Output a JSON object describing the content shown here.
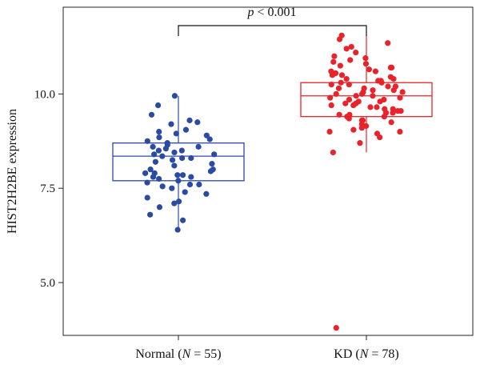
{
  "chart_data": {
    "type": "boxplot",
    "ylabel": "HIST2H2BE expression",
    "ylim": [
      3.6,
      12.3
    ],
    "yticks": [
      "5.0",
      "7.5",
      "10.0"
    ],
    "annotation": {
      "italic": "p",
      "rest": " < 0.001"
    },
    "colors": {
      "Normal": "#2b4ba3",
      "KD": "#e8232a"
    },
    "categories": [
      {
        "name": "Normal",
        "label_pre": "Normal (",
        "label_italic": "N",
        "label_post": " = 55)"
      },
      {
        "name": "KD",
        "label_pre": "KD (",
        "label_italic": "N",
        "label_post": " = 78)"
      }
    ],
    "boxes": [
      {
        "name": "Normal",
        "q1": 7.7,
        "median": 8.35,
        "q3": 8.7,
        "whisker_low": 6.4,
        "whisker_high": 9.95,
        "outliers": []
      },
      {
        "name": "KD",
        "q1": 9.4,
        "median": 9.95,
        "q3": 10.3,
        "whisker_low": 8.45,
        "whisker_high": 11.55,
        "outliers": [
          3.8
        ]
      }
    ],
    "points": {
      "Normal": [
        6.4,
        6.65,
        6.8,
        7.0,
        7.1,
        7.15,
        7.25,
        7.35,
        7.4,
        7.5,
        7.55,
        7.6,
        7.6,
        7.65,
        7.7,
        7.75,
        7.8,
        7.8,
        7.85,
        7.85,
        7.9,
        7.9,
        7.95,
        8.0,
        8.0,
        8.1,
        8.15,
        8.2,
        8.25,
        8.3,
        8.3,
        8.35,
        8.4,
        8.4,
        8.45,
        8.5,
        8.5,
        8.55,
        8.6,
        8.6,
        8.65,
        8.7,
        8.75,
        8.8,
        8.85,
        8.9,
        8.95,
        9.0,
        9.05,
        9.2,
        9.25,
        9.3,
        9.45,
        9.7,
        9.95
      ],
      "KD": [
        3.8,
        8.45,
        8.7,
        8.85,
        8.95,
        9.0,
        9.05,
        9.1,
        9.15,
        9.2,
        9.25,
        9.3,
        9.3,
        9.35,
        9.4,
        9.4,
        9.45,
        9.45,
        9.5,
        9.5,
        9.55,
        9.55,
        9.6,
        9.6,
        9.65,
        9.65,
        9.7,
        9.7,
        9.75,
        9.75,
        9.8,
        9.8,
        9.85,
        9.85,
        9.9,
        9.9,
        9.95,
        9.95,
        10.0,
        10.0,
        10.05,
        10.05,
        10.1,
        10.1,
        10.15,
        10.15,
        10.2,
        10.2,
        10.25,
        10.25,
        10.3,
        10.3,
        10.35,
        10.35,
        10.4,
        10.4,
        10.45,
        10.5,
        10.5,
        10.55,
        10.6,
        10.65,
        10.7,
        10.7,
        10.75,
        10.8,
        10.85,
        10.9,
        10.95,
        11.0,
        11.1,
        11.2,
        11.25,
        11.35,
        11.45,
        11.55,
        9.0,
        10.6
      ]
    }
  }
}
